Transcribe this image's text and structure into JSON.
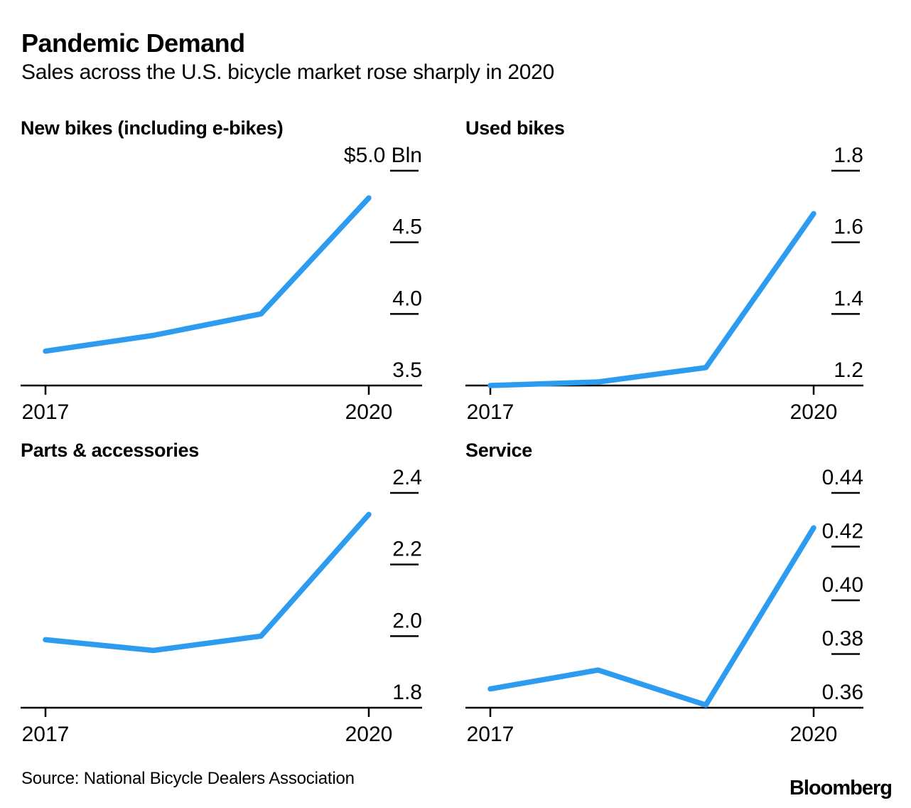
{
  "header": {
    "title": "Pandemic Demand",
    "subtitle": "Sales across the U.S. bicycle market rose sharply in 2020"
  },
  "footer": {
    "source": "Source: National Bicycle Dealers Association",
    "brand": "Bloomberg"
  },
  "colors": {
    "accent": "#2D9CF0",
    "axis": "#000000",
    "text": "#000000"
  },
  "chart_data": [
    {
      "type": "line",
      "title": "New bikes (including e-bikes)",
      "x": [
        2017,
        2018,
        2019,
        2020
      ],
      "values": [
        3.74,
        3.85,
        4.0,
        4.81
      ],
      "ylim": [
        3.5,
        5.0
      ],
      "yticks": [
        5.0,
        4.5,
        4.0,
        3.5
      ],
      "ytick_labels": [
        "$5.0 Bln",
        "4.5",
        "4.0",
        "3.5"
      ],
      "xticks": [
        2017,
        2020
      ],
      "xtick_labels": [
        "2017",
        "2020"
      ],
      "grid": "right-side tick dashes, baseline axis",
      "legend": "none"
    },
    {
      "type": "line",
      "title": "Used bikes",
      "x": [
        2017,
        2018,
        2019,
        2020
      ],
      "values": [
        1.2,
        1.21,
        1.25,
        1.68
      ],
      "ylim": [
        1.2,
        1.8
      ],
      "yticks": [
        1.8,
        1.6,
        1.4,
        1.2
      ],
      "ytick_labels": [
        "1.8",
        "1.6",
        "1.4",
        "1.2"
      ],
      "xticks": [
        2017,
        2020
      ],
      "xtick_labels": [
        "2017",
        "2020"
      ],
      "grid": "right-side tick dashes, baseline axis",
      "legend": "none"
    },
    {
      "type": "line",
      "title": "Parts & accessories",
      "x": [
        2017,
        2018,
        2019,
        2020
      ],
      "values": [
        1.99,
        1.96,
        2.0,
        2.34
      ],
      "ylim": [
        1.8,
        2.4
      ],
      "yticks": [
        2.4,
        2.2,
        2.0,
        1.8
      ],
      "ytick_labels": [
        "2.4",
        "2.2",
        "2.0",
        "1.8"
      ],
      "xticks": [
        2017,
        2020
      ],
      "xtick_labels": [
        "2017",
        "2020"
      ],
      "grid": "right-side tick dashes, baseline axis",
      "legend": "none"
    },
    {
      "type": "line",
      "title": "Service",
      "x": [
        2017,
        2018,
        2019,
        2020
      ],
      "values": [
        0.367,
        0.374,
        0.361,
        0.427
      ],
      "ylim": [
        0.36,
        0.44
      ],
      "yticks": [
        0.44,
        0.42,
        0.4,
        0.38,
        0.36
      ],
      "ytick_labels": [
        "0.44",
        "0.42",
        "0.40",
        "0.38",
        "0.36"
      ],
      "xticks": [
        2017,
        2020
      ],
      "xtick_labels": [
        "2017",
        "2020"
      ],
      "grid": "right-side tick dashes, baseline axis",
      "legend": "none"
    }
  ]
}
